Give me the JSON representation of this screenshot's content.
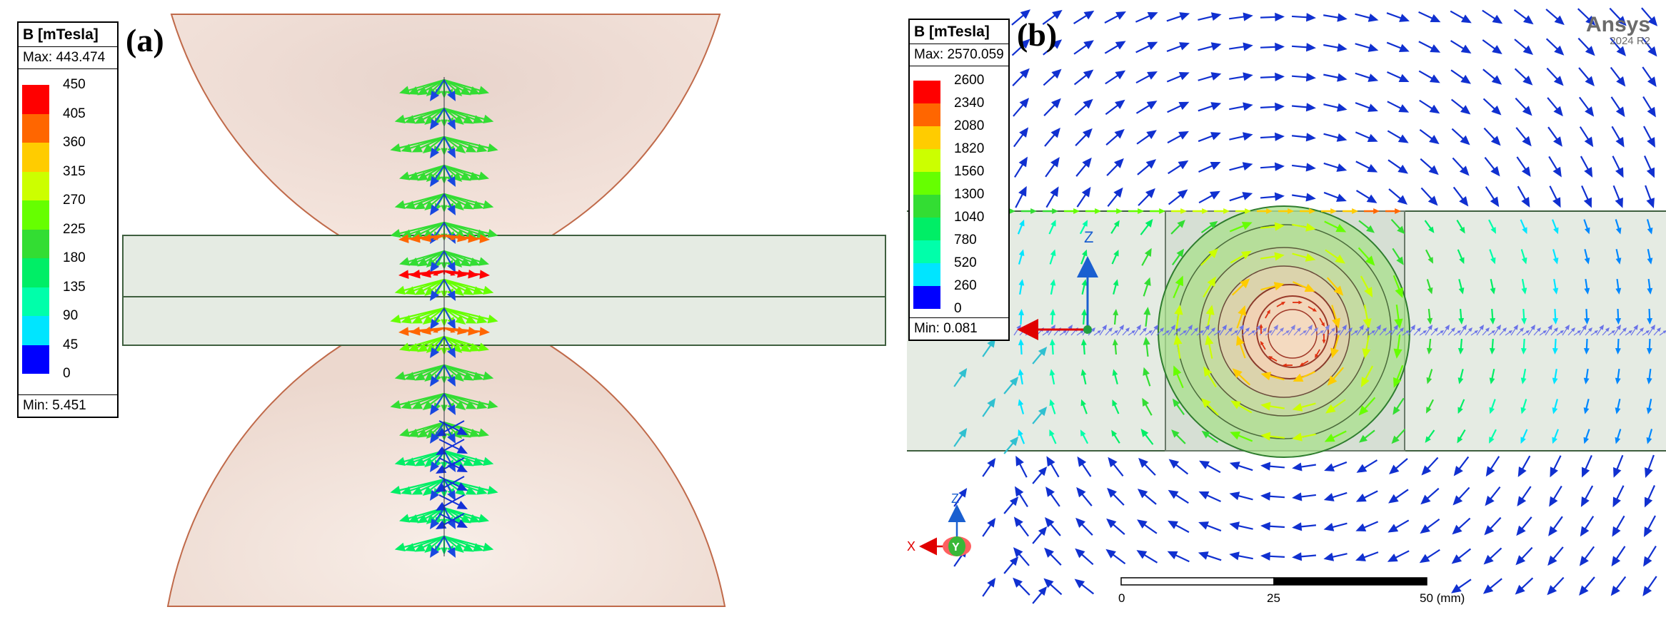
{
  "panels": [
    {
      "label": "(a)",
      "legend": {
        "title": "B [mTesla]",
        "max": "Max: 443.474",
        "min": "Min:  5.451",
        "ticks": [
          "450",
          "405",
          "360",
          "315",
          "270",
          "225",
          "180",
          "135",
          "90",
          "45",
          "0"
        ],
        "colors": [
          "#ff0000",
          "#ff6600",
          "#ffcc00",
          "#ccff00",
          "#66ff00",
          "#33dd33",
          "#00ee66",
          "#00ffaa",
          "#00e5ff",
          "#0088ff",
          "#0000ff"
        ]
      }
    },
    {
      "label": "(b)",
      "legend": {
        "title": "B [mTesla]",
        "max": "Max: 2570.059",
        "min": "Min:   0.081",
        "ticks": [
          "2600",
          "2340",
          "2080",
          "1820",
          "1560",
          "1300",
          "1040",
          "780",
          "520",
          "260",
          "0"
        ],
        "colors": [
          "#ff0000",
          "#ff6600",
          "#ffcc00",
          "#ccff00",
          "#66ff00",
          "#33dd33",
          "#00ee66",
          "#00ffaa",
          "#00e5ff",
          "#0088ff",
          "#0000ff"
        ]
      },
      "brand": {
        "name": "Ansys",
        "version": "2024 R2"
      },
      "axes": {
        "x": "X",
        "y": "Y",
        "z": "Z"
      },
      "scale_bar": {
        "ticks": [
          "0",
          "25",
          "50 (mm)"
        ]
      }
    }
  ],
  "colors": {
    "electrode_fill": "#f2ddd4",
    "electrode_edge": "#c06a4a",
    "sheet_fill": "#e5ebe3",
    "sheet_edge": "#3f5f3f",
    "arrow_blue": "#1030d0"
  }
}
